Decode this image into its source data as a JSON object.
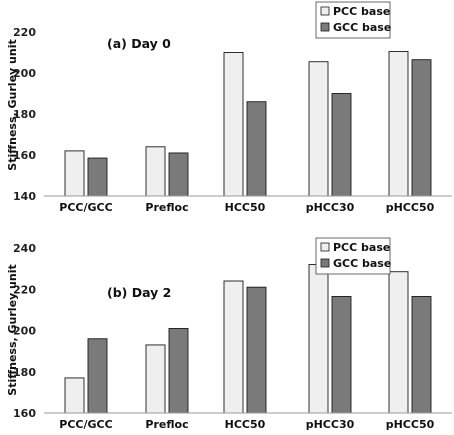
{
  "chart_data": [
    {
      "type": "bar",
      "title": "(a) Day 0",
      "ylabel": "Stiffness, Gurley unit",
      "categories": [
        "PCC/GCC",
        "Prefloc",
        "HCC50",
        "pHCC30",
        "pHCC50"
      ],
      "series": [
        {
          "name": "PCC base",
          "color": "#efefef",
          "values": [
            162,
            164,
            210,
            205.5,
            210.5
          ]
        },
        {
          "name": "GCC base",
          "color": "#7a7a7a",
          "values": [
            158.5,
            161,
            186,
            190,
            206.5
          ]
        }
      ],
      "ylim": [
        140,
        220
      ],
      "yticks": [
        140,
        160,
        180,
        200,
        220
      ],
      "legend": "top-right, outside plot"
    },
    {
      "type": "bar",
      "title": "(b) Day 2",
      "ylabel": "Stiffness, Gurley unit",
      "categories": [
        "PCC/GCC",
        "Prefloc",
        "HCC50",
        "pHCC30",
        "pHCC50"
      ],
      "series": [
        {
          "name": "PCC base",
          "color": "#efefef",
          "values": [
            177,
            193,
            224,
            232,
            228.5
          ]
        },
        {
          "name": "GCC base",
          "color": "#7a7a7a",
          "values": [
            196,
            201,
            221,
            216.5,
            216.5
          ]
        }
      ],
      "ylim": [
        160,
        240
      ],
      "yticks": [
        160,
        180,
        200,
        220,
        240
      ],
      "legend": "top-right"
    }
  ]
}
